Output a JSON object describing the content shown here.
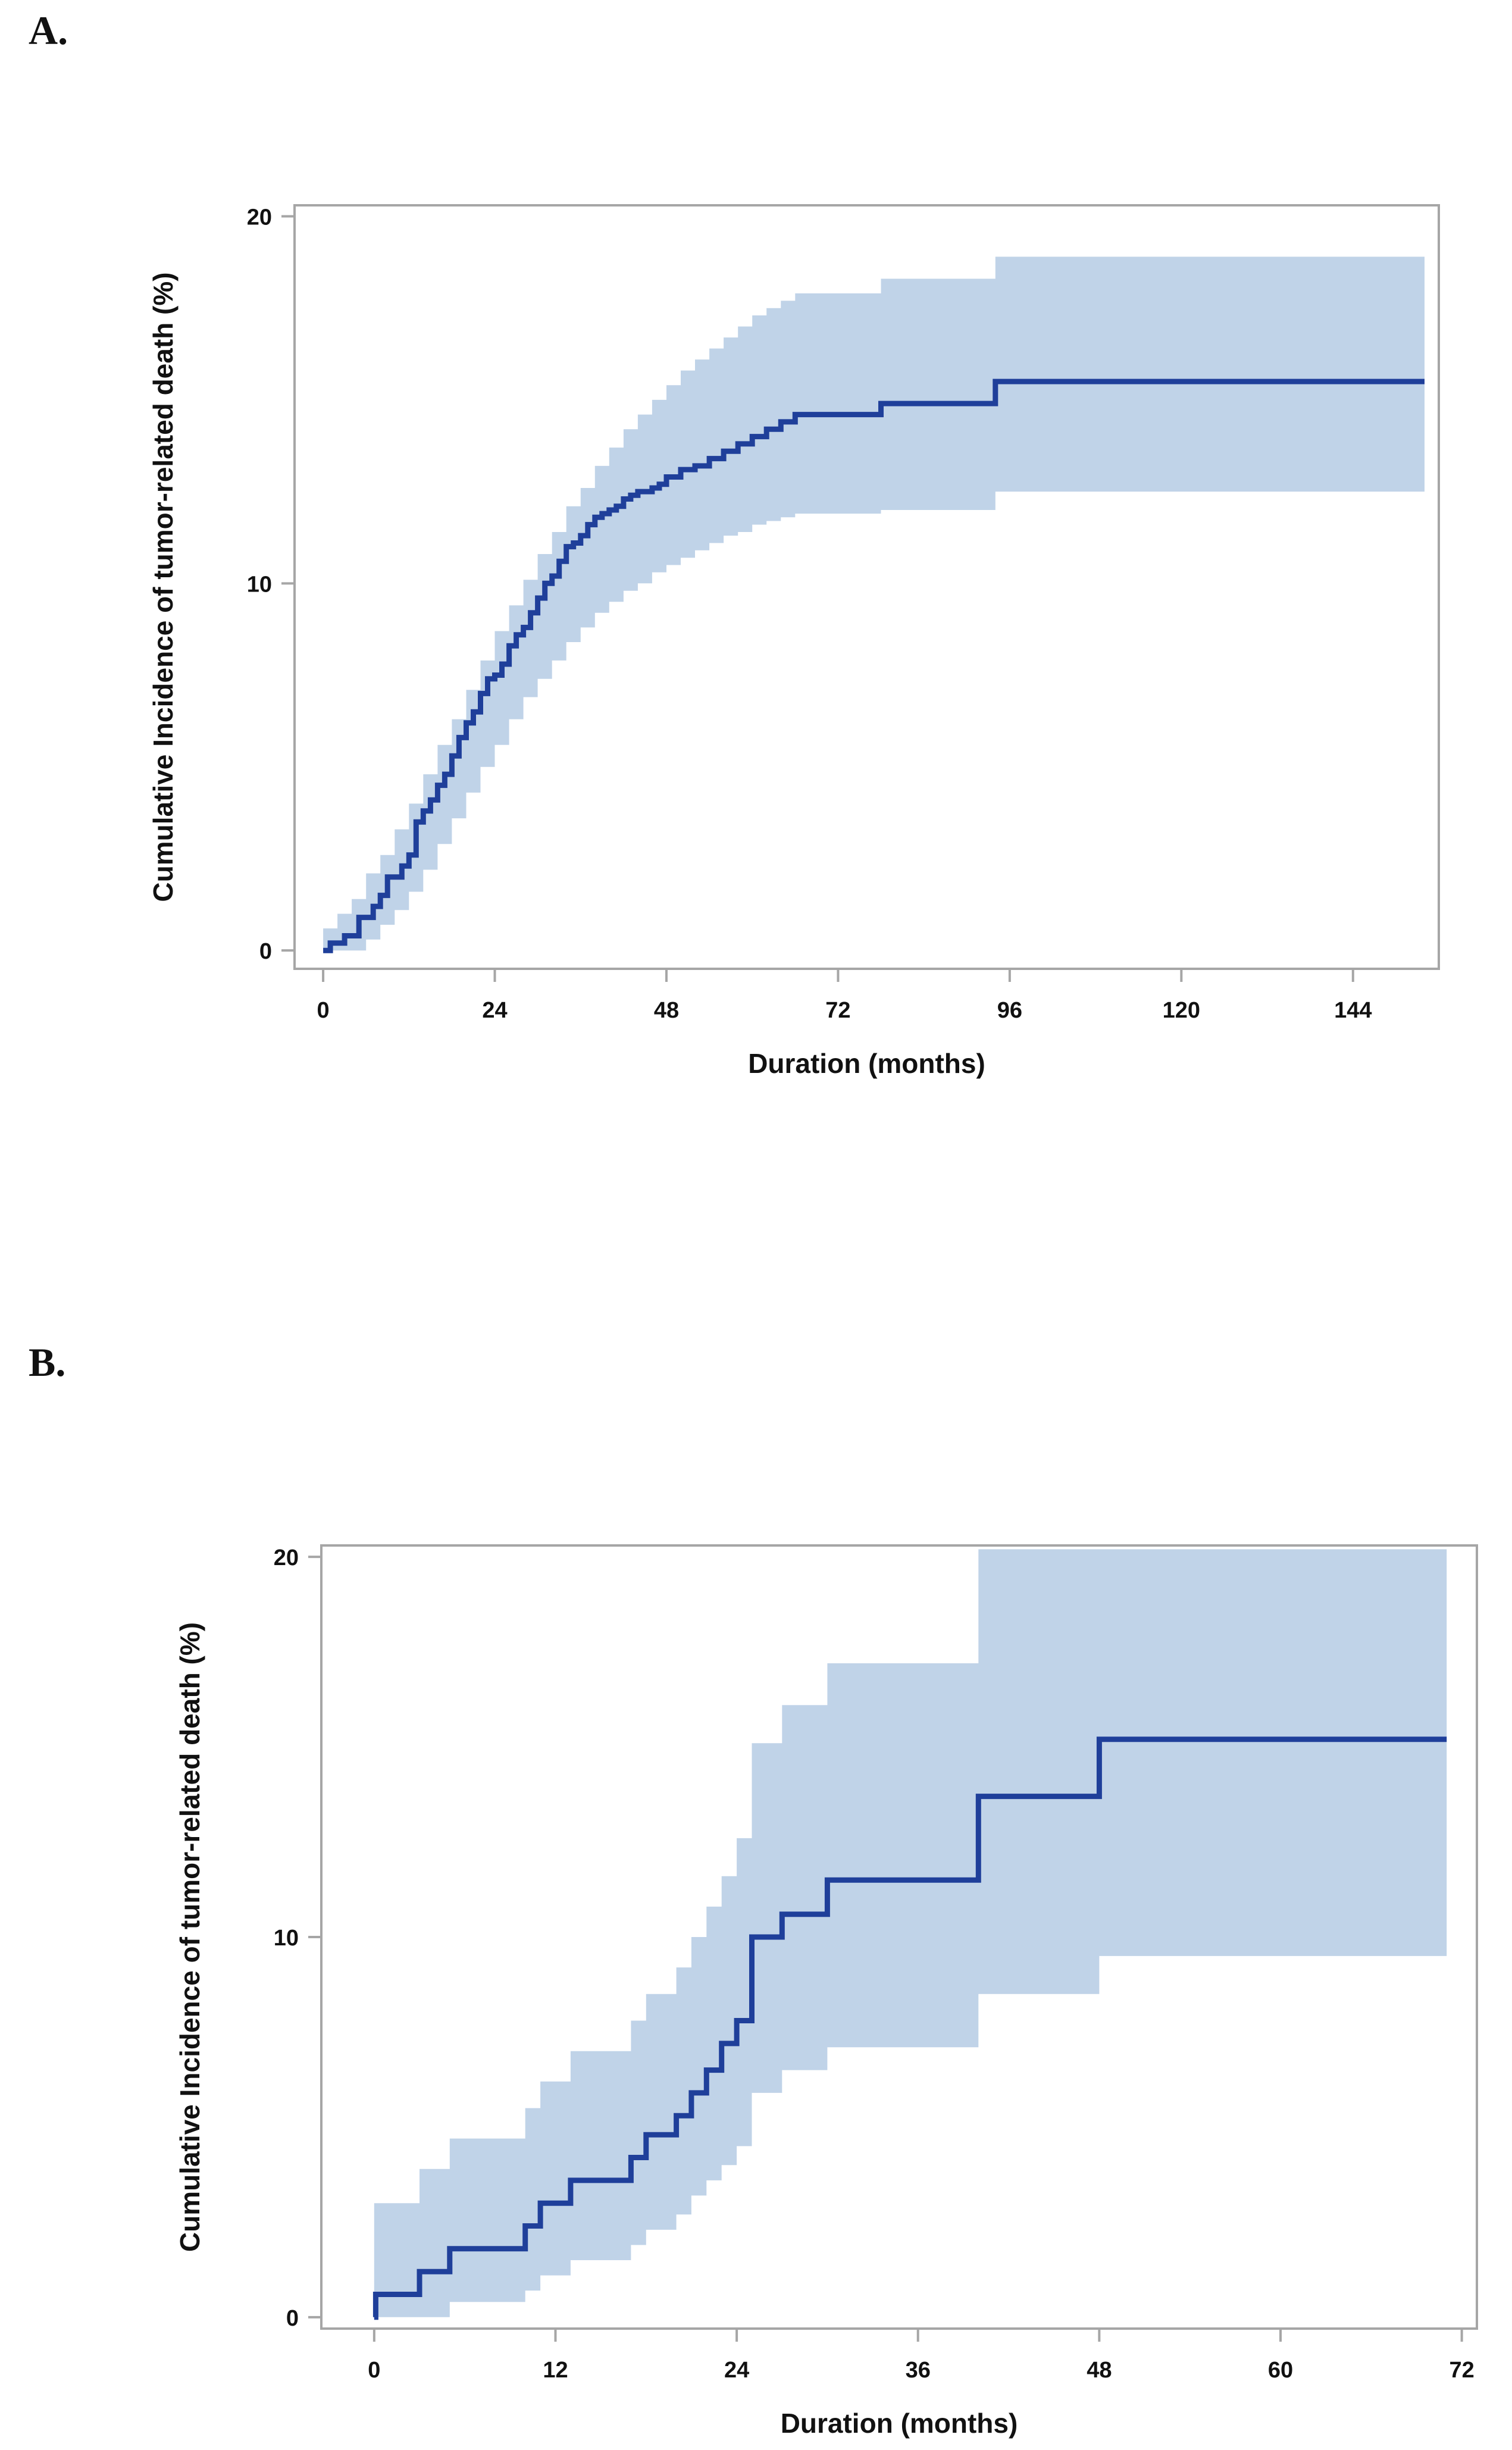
{
  "panels": {
    "a": {
      "label": "A."
    },
    "b": {
      "label": "B."
    }
  },
  "colors": {
    "line": "#1f3f9a",
    "band": "#c0d3e8",
    "frame": "#a6a6a6",
    "text": "#111111"
  },
  "chart_data": [
    {
      "type": "line",
      "id": "a",
      "title": "",
      "xlabel": "Duration (months)",
      "ylabel": "Cumulative Incidence of tumor-related death (%)",
      "xlim": [
        -4,
        156
      ],
      "ylim": [
        -0.5,
        20.3
      ],
      "xticks": [
        0,
        24,
        48,
        72,
        96,
        120,
        144
      ],
      "yticks": [
        0,
        10,
        20
      ],
      "xtick_labels": [
        "0",
        "24",
        "48",
        "72",
        "96",
        "120",
        "144"
      ],
      "ytick_labels": [
        "0",
        "10",
        "20"
      ],
      "step": true,
      "series": [
        {
          "name": "Cumulative incidence",
          "x": [
            0,
            1,
            2,
            3,
            4,
            5,
            6,
            7,
            8,
            9,
            10,
            11,
            12,
            13,
            14,
            15,
            16,
            17,
            18,
            19,
            20,
            21,
            22,
            23,
            24,
            25,
            26,
            27,
            28,
            29,
            30,
            31,
            32,
            33,
            34,
            35,
            36,
            37,
            38,
            39,
            40,
            41,
            42,
            43,
            44,
            45,
            46,
            47,
            48,
            50,
            52,
            54,
            56,
            58,
            60,
            62,
            64,
            66,
            72,
            78,
            84,
            90,
            94,
            100,
            110,
            120,
            130,
            140,
            150,
            154
          ],
          "y": [
            0,
            0.2,
            0.2,
            0.4,
            0.4,
            0.9,
            0.9,
            1.2,
            1.5,
            2.0,
            2.0,
            2.3,
            2.6,
            3.5,
            3.8,
            4.1,
            4.5,
            4.8,
            5.3,
            5.8,
            6.2,
            6.5,
            7.0,
            7.4,
            7.5,
            7.8,
            8.3,
            8.6,
            8.8,
            9.2,
            9.6,
            10.0,
            10.2,
            10.6,
            11.0,
            11.1,
            11.3,
            11.6,
            11.8,
            11.9,
            12.0,
            12.1,
            12.3,
            12.4,
            12.5,
            12.5,
            12.6,
            12.7,
            12.9,
            13.1,
            13.2,
            13.4,
            13.6,
            13.8,
            14.0,
            14.2,
            14.4,
            14.6,
            14.6,
            14.9,
            14.9,
            14.9,
            15.5,
            15.5,
            15.5,
            15.5,
            15.5,
            15.5,
            15.5,
            15.5
          ]
        },
        {
          "name": "95% CI lower",
          "x": [
            0,
            2,
            4,
            6,
            8,
            10,
            12,
            14,
            16,
            18,
            20,
            22,
            24,
            26,
            28,
            30,
            32,
            34,
            36,
            38,
            40,
            42,
            44,
            46,
            48,
            50,
            52,
            54,
            56,
            58,
            60,
            62,
            64,
            66,
            72,
            78,
            84,
            90,
            94,
            100,
            120,
            140,
            154
          ],
          "y": [
            0,
            0,
            0,
            0.3,
            0.7,
            1.1,
            1.6,
            2.2,
            2.9,
            3.6,
            4.3,
            5.0,
            5.6,
            6.3,
            6.9,
            7.4,
            7.9,
            8.4,
            8.8,
            9.2,
            9.5,
            9.8,
            10.0,
            10.3,
            10.5,
            10.7,
            10.9,
            11.1,
            11.3,
            11.4,
            11.6,
            11.7,
            11.8,
            11.9,
            11.9,
            12.0,
            12.0,
            12.0,
            12.5,
            12.5,
            12.5,
            12.5,
            12.5
          ]
        },
        {
          "name": "95% CI upper",
          "x": [
            0,
            2,
            4,
            6,
            8,
            10,
            12,
            14,
            16,
            18,
            20,
            22,
            24,
            26,
            28,
            30,
            32,
            34,
            36,
            38,
            40,
            42,
            44,
            46,
            48,
            50,
            52,
            54,
            56,
            58,
            60,
            62,
            64,
            66,
            72,
            78,
            84,
            90,
            94,
            100,
            120,
            140,
            154
          ],
          "y": [
            0.6,
            1.0,
            1.4,
            2.1,
            2.6,
            3.3,
            4.0,
            4.8,
            5.6,
            6.3,
            7.1,
            7.9,
            8.7,
            9.4,
            10.1,
            10.8,
            11.4,
            12.1,
            12.6,
            13.2,
            13.7,
            14.2,
            14.6,
            15.0,
            15.4,
            15.8,
            16.1,
            16.4,
            16.7,
            17.0,
            17.3,
            17.5,
            17.7,
            17.9,
            17.9,
            18.3,
            18.3,
            18.3,
            18.9,
            18.9,
            18.9,
            18.9,
            18.9
          ]
        }
      ]
    },
    {
      "type": "line",
      "id": "b",
      "title": "",
      "xlabel": "Duration (months)",
      "ylabel": "Cumulative Incidence of tumor-related death (%)",
      "xlim": [
        -3.5,
        73
      ],
      "ylim": [
        -0.3,
        20.3
      ],
      "xticks": [
        0,
        12,
        24,
        36,
        48,
        60,
        72
      ],
      "yticks": [
        0,
        10,
        20
      ],
      "xtick_labels": [
        "0",
        "12",
        "24",
        "36",
        "48",
        "60",
        "72"
      ],
      "ytick_labels": [
        "0",
        "10",
        "20"
      ],
      "step": true,
      "series": [
        {
          "name": "Cumulative incidence",
          "x": [
            0,
            0.1,
            3,
            5,
            10,
            11,
            13,
            17,
            18,
            20,
            21,
            22,
            23,
            24,
            25,
            27,
            30,
            40,
            48,
            71
          ],
          "y": [
            0,
            0.6,
            1.2,
            1.8,
            2.4,
            3.0,
            3.6,
            4.2,
            4.8,
            5.3,
            5.9,
            6.5,
            7.2,
            7.8,
            10.0,
            10.6,
            11.5,
            13.7,
            15.2,
            15.2
          ]
        },
        {
          "name": "95% CI lower",
          "x": [
            0,
            3,
            5,
            10,
            11,
            13,
            17,
            18,
            20,
            21,
            22,
            23,
            24,
            25,
            27,
            30,
            40,
            48,
            71
          ],
          "y": [
            0,
            0,
            0.4,
            0.7,
            1.1,
            1.5,
            1.9,
            2.3,
            2.7,
            3.2,
            3.6,
            4.0,
            4.5,
            5.9,
            6.5,
            7.1,
            8.5,
            9.5,
            9.5
          ]
        },
        {
          "name": "95% CI upper",
          "x": [
            0,
            3,
            5,
            10,
            11,
            13,
            17,
            18,
            20,
            21,
            22,
            23,
            24,
            25,
            27,
            30,
            40,
            48,
            71
          ],
          "y": [
            3.0,
            3.9,
            4.7,
            5.5,
            6.2,
            7.0,
            7.8,
            8.5,
            9.2,
            10.0,
            10.8,
            11.6,
            12.6,
            15.1,
            16.1,
            17.2,
            20.2,
            20.2,
            20.2
          ]
        }
      ]
    }
  ]
}
